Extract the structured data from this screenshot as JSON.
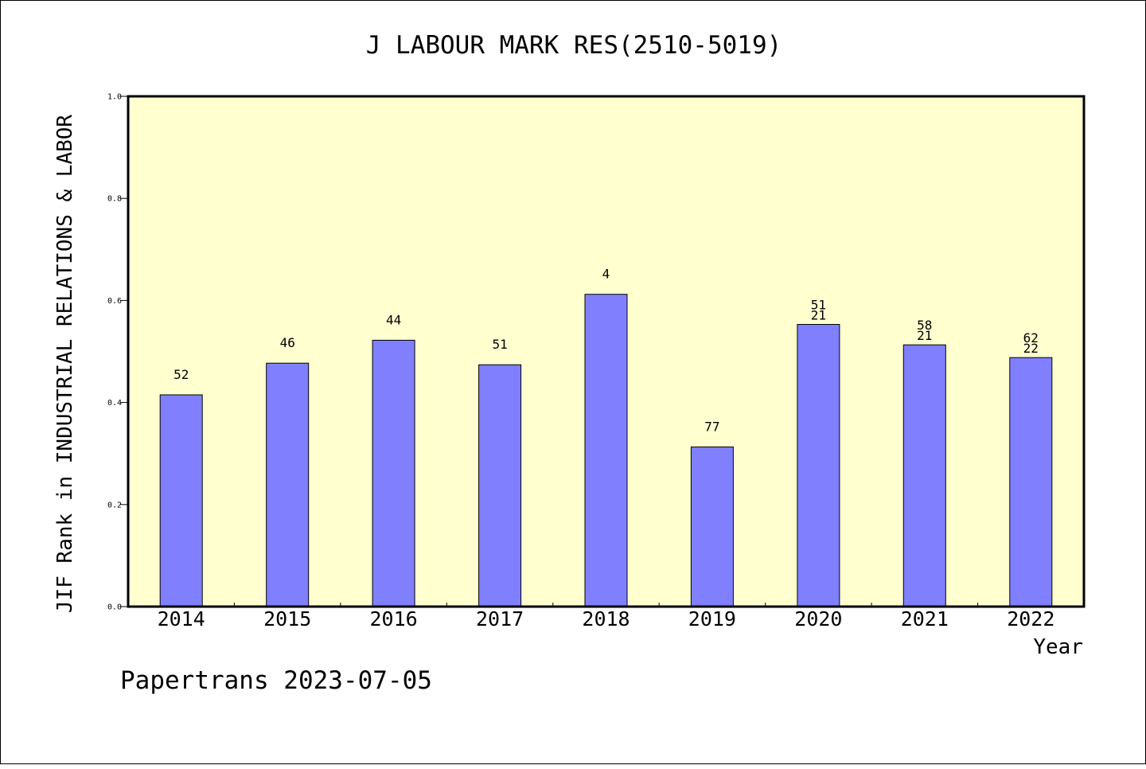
{
  "chart_data": {
    "type": "bar",
    "title": "J LABOUR MARK RES(2510-5019)",
    "xlabel": "Year",
    "ylabel": "JIF Rank in INDUSTRIAL RELATIONS & LABOR",
    "ylim": [
      0.0,
      1.0
    ],
    "yticks": [
      "0.0",
      "0.2",
      "0.4",
      "0.6",
      "0.8",
      "1.0"
    ],
    "categories": [
      "2014",
      "2015",
      "2016",
      "2017",
      "2018",
      "2019",
      "2020",
      "2021",
      "2022"
    ],
    "values": [
      0.415,
      0.477,
      0.522,
      0.474,
      0.612,
      0.313,
      0.553,
      0.513,
      0.488
    ],
    "bar_labels": [
      [
        "52"
      ],
      [
        "46"
      ],
      [
        "44"
      ],
      [
        "51"
      ],
      [
        "4"
      ],
      [
        "77"
      ],
      [
        "51",
        "21"
      ],
      [
        "58",
        "21"
      ],
      [
        "62",
        "22"
      ]
    ],
    "plot_background": "#ffffd0",
    "bar_color": "#8080ff",
    "grid": false
  },
  "footer": "Papertrans 2023-07-05"
}
